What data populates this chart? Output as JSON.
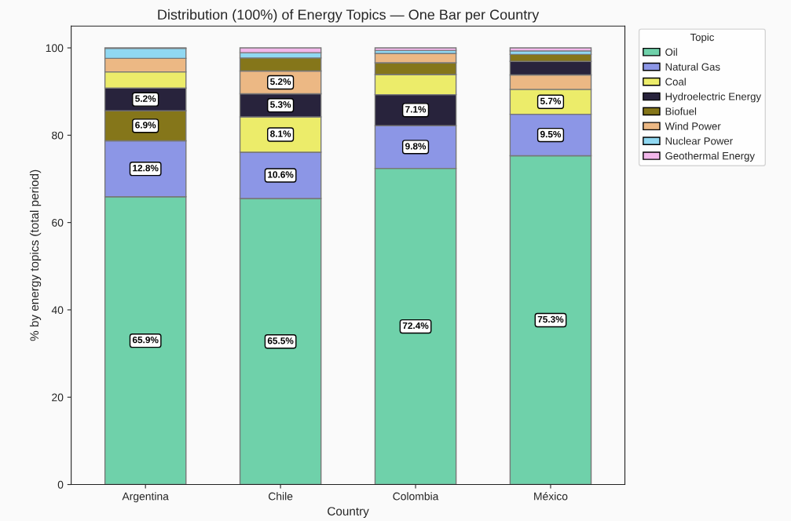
{
  "chart_data": {
    "type": "bar",
    "title": "Distribution (100%) of Energy Topics — One Bar per Country",
    "xlabel": "Country",
    "ylabel": "% by energy topics (total period)",
    "legend_title": "Topic",
    "categories": [
      "Argentina",
      "Chile",
      "Colombia",
      "México"
    ],
    "stacked": true,
    "ylim": [
      0,
      105
    ],
    "yticks": [
      0,
      20,
      40,
      60,
      80,
      100
    ],
    "grid": false,
    "legend": "top right",
    "series": [
      {
        "name": "Oil",
        "color": "#6fd1aa",
        "values": [
          65.9,
          65.5,
          72.4,
          75.3
        ],
        "value_labels": [
          "65.9%",
          "65.5%",
          "72.4%",
          "75.3%"
        ]
      },
      {
        "name": "Natural Gas",
        "color": "#8c96e6",
        "values": [
          12.8,
          10.6,
          9.8,
          9.5
        ],
        "value_labels": [
          "12.8%",
          "10.6%",
          "9.8%",
          "9.5%"
        ]
      },
      {
        "name": "Coal",
        "color": "#ecec6a",
        "values": [
          3.7,
          8.1,
          4.6,
          5.7
        ],
        "value_labels": [
          null,
          "8.1%",
          null,
          "5.7%"
        ]
      },
      {
        "name": "Hydroelectric Energy",
        "color": "#28233c",
        "values": [
          5.2,
          5.3,
          7.1,
          3.1
        ],
        "value_labels": [
          "5.2%",
          "5.3%",
          "7.1%",
          null
        ]
      },
      {
        "name": "Biofuel",
        "color": "#85761a",
        "values": [
          6.9,
          3.0,
          2.7,
          1.6
        ],
        "value_labels": [
          "6.9%",
          null,
          null,
          null
        ]
      },
      {
        "name": "Wind Power",
        "color": "#ecb884",
        "values": [
          3.1,
          5.2,
          2.1,
          3.3
        ],
        "value_labels": [
          null,
          "5.2%",
          null,
          null
        ]
      },
      {
        "name": "Nuclear Power",
        "color": "#90d8f2",
        "values": [
          2.3,
          1.2,
          0.7,
          0.8
        ],
        "value_labels": [
          null,
          null,
          null,
          null
        ]
      },
      {
        "name": "Geothermal Energy",
        "color": "#f2b6ea",
        "values": [
          0.1,
          1.1,
          0.6,
          0.7
        ],
        "value_labels": [
          null,
          null,
          null,
          null
        ]
      }
    ]
  }
}
